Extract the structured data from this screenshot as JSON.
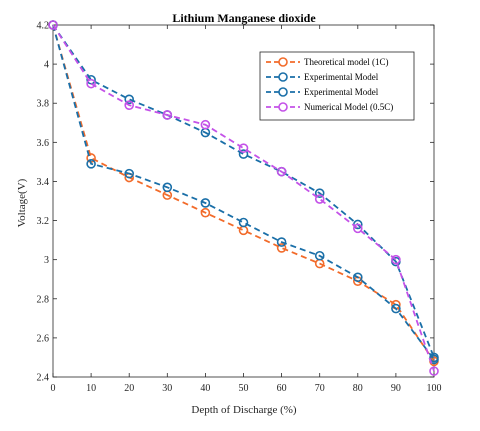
{
  "chart_data": {
    "type": "line",
    "title": "Lithium Manganese dioxide",
    "xlabel": "Depth of Discharge (%)",
    "ylabel": "Voltage(V)",
    "xlim": [
      0,
      100
    ],
    "ylim": [
      2.4,
      4.2
    ],
    "xticks": [
      0,
      10,
      20,
      30,
      40,
      50,
      60,
      70,
      80,
      90,
      100
    ],
    "yticks": [
      2.4,
      2.6,
      2.8,
      3,
      3.2,
      3.4,
      3.6,
      3.8,
      4,
      4.2
    ],
    "xtick_labels": [
      "0",
      "10",
      "20",
      "30",
      "40",
      "50",
      "60",
      "70",
      "80",
      "90",
      "100"
    ],
    "ytick_labels": [
      "2.4",
      "2.6",
      "2.8",
      "3",
      "3.2",
      "3.4",
      "3.6",
      "3.8",
      "4",
      "4.2"
    ],
    "x": [
      0,
      10,
      20,
      30,
      40,
      50,
      60,
      70,
      80,
      90,
      100
    ],
    "legend_position": "top-right",
    "grid": false,
    "series": [
      {
        "name": "Theoretical model (1C)",
        "color": "#f26b2a",
        "marker": "open-circle",
        "line_style": "dashed",
        "values": [
          4.2,
          3.52,
          3.42,
          3.33,
          3.24,
          3.15,
          3.06,
          2.98,
          2.89,
          2.77,
          2.48
        ]
      },
      {
        "name": "Experimental Model",
        "color": "#1a6fa8",
        "marker": "open-circle",
        "line_style": "dashed",
        "values": [
          4.2,
          3.49,
          3.44,
          3.37,
          3.29,
          3.19,
          3.09,
          3.02,
          2.91,
          2.75,
          2.49
        ]
      },
      {
        "name": "Experimental Model",
        "color": "#1a6fa8",
        "marker": "open-circle",
        "line_style": "dashed",
        "values": [
          4.2,
          3.92,
          3.82,
          3.74,
          3.65,
          3.54,
          3.45,
          3.34,
          3.18,
          2.99,
          2.5
        ]
      },
      {
        "name": "Numerical Model (0.5C)",
        "color": "#c452e8",
        "marker": "open-circle",
        "line_style": "dashed",
        "values": [
          4.2,
          3.9,
          3.79,
          3.74,
          3.69,
          3.57,
          3.45,
          3.31,
          3.16,
          3.0,
          2.43
        ]
      }
    ]
  }
}
